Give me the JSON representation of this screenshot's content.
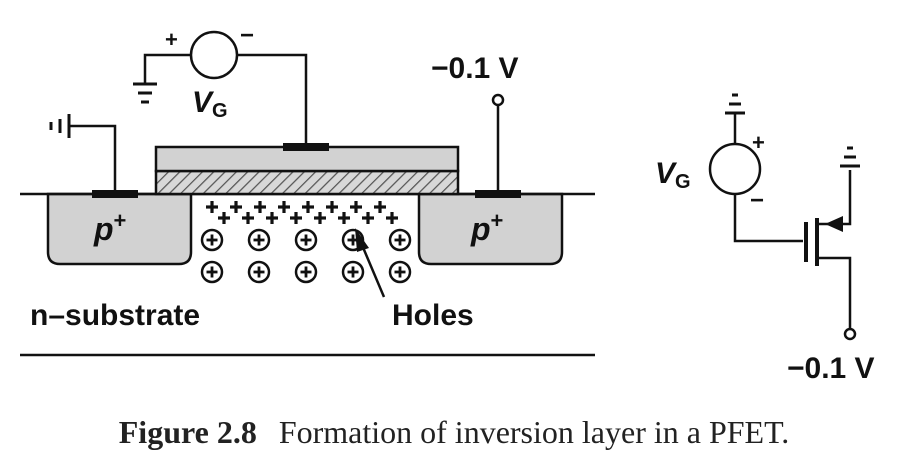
{
  "labels": {
    "source_region": "p",
    "drain_region": "p",
    "region_superscript": "+",
    "substrate": "n–substrate",
    "holes": "Holes",
    "drain_voltage": "−0.1 V",
    "gate_voltage_symbol": "V",
    "gate_voltage_subscript": "G",
    "plus_sign": "+",
    "minus_sign": "−"
  },
  "circuit": {
    "gate_voltage_symbol": "V",
    "gate_voltage_subscript": "G",
    "plus_sign": "+",
    "minus_sign": "−",
    "drain_voltage": "−0.1 V"
  },
  "caption": {
    "number": "Figure 2.8",
    "text": "Formation of inversion layer in a PFET."
  }
}
